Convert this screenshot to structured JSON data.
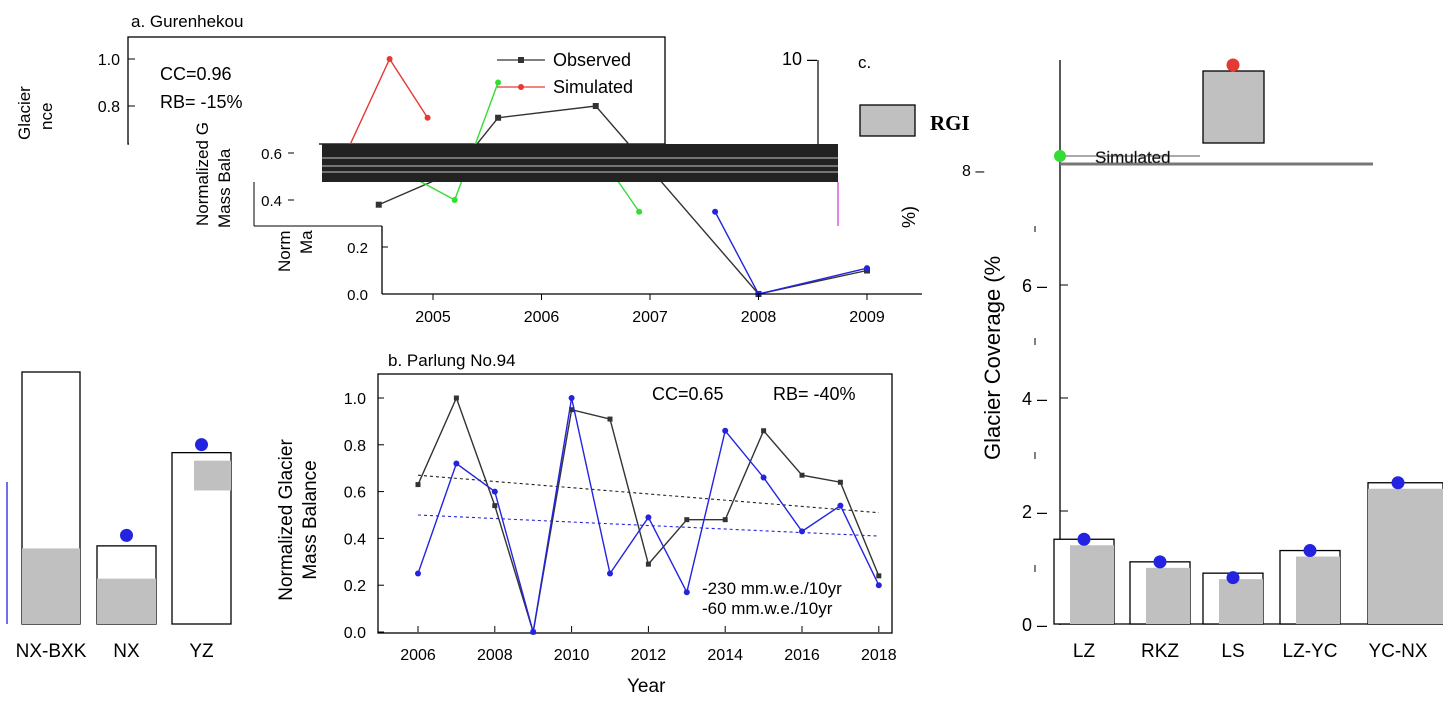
{
  "colors": {
    "observed": "#333333",
    "simulated_a": "#e53935",
    "simulated_b": "#2424e0",
    "bar_fill": "#c0c0c0",
    "green_marker": "#33dd33",
    "trend_obs": "#222222"
  },
  "chart_data": [
    {
      "id": "a",
      "type": "line",
      "title": "a. Gurenhekou",
      "ylabel_fragments": [
        "Glacier",
        "nce",
        "Normalized G",
        "Mass Bala",
        "Norm",
        "Ma"
      ],
      "ylim": [
        0,
        1.05
      ],
      "yticks": [
        "0.0",
        "0.2",
        "0.4",
        "0.6",
        "0.8",
        "1.0"
      ],
      "x": [
        2005,
        2006,
        2007,
        2008,
        2009
      ],
      "xticks": [
        "2005",
        "2006",
        "2007",
        "2008",
        "2009"
      ],
      "annotations": [
        "CC=0.96",
        "RB= -15%"
      ],
      "legend": {
        "position": "top-right",
        "entries": [
          "Observed",
          "Simulated"
        ]
      },
      "series": [
        {
          "name": "Observed",
          "points": [
            [
              2004.5,
              0.38
            ],
            [
              2005.2,
              0.52
            ],
            [
              2005.6,
              0.75
            ],
            [
              2006.5,
              0.8
            ],
            [
              2008.0,
              0.0
            ],
            [
              2009.0,
              0.1
            ]
          ]
        },
        {
          "name": "Simulated",
          "points": [
            [
              2004.15,
              0.55
            ],
            [
              2004.6,
              1.0
            ],
            [
              2004.95,
              0.75
            ]
          ]
        },
        {
          "name": "Simulated",
          "points": [
            [
              2004.6,
              0.55
            ],
            [
              2005.2,
              0.4
            ],
            [
              2005.6,
              0.9
            ]
          ]
        },
        {
          "name": "Simulated",
          "points": [
            [
              2006.6,
              0.55
            ],
            [
              2006.9,
              0.35
            ]
          ]
        },
        {
          "name": "Simulated",
          "points": [
            [
              2007.6,
              0.35
            ],
            [
              2008.0,
              0.0
            ],
            [
              2009.0,
              0.11
            ]
          ]
        }
      ]
    },
    {
      "id": "b",
      "type": "line",
      "title": "b. Parlung No.94",
      "xlabel": "Year",
      "ylabel": [
        "Normalized Glacier",
        "Mass Balance"
      ],
      "xlim": [
        2005,
        2019
      ],
      "ylim": [
        0,
        1.05
      ],
      "xticks": [
        "2006",
        "2008",
        "2010",
        "2012",
        "2014",
        "2016",
        "2018"
      ],
      "yticks": [
        "0.0",
        "0.2",
        "0.4",
        "0.6",
        "0.8",
        "1.0"
      ],
      "annotations": [
        "CC=0.65",
        "RB= -40%"
      ],
      "trend_labels": [
        "-230 mm.w.e./10yr",
        "-60 mm.w.e./10yr"
      ],
      "x": [
        2006,
        2007,
        2008,
        2009,
        2010,
        2011,
        2012,
        2013,
        2014,
        2015,
        2016,
        2017,
        2018
      ],
      "series": [
        {
          "name": "Observed",
          "values": [
            0.63,
            1.0,
            0.54,
            0.0,
            0.95,
            0.91,
            0.29,
            0.48,
            0.48,
            0.86,
            0.67,
            0.64,
            0.24
          ]
        },
        {
          "name": "Simulated",
          "values": [
            0.25,
            0.72,
            0.6,
            0.0,
            1.0,
            0.25,
            0.49,
            0.17,
            0.86,
            0.66,
            0.43,
            0.54,
            0.2
          ]
        }
      ],
      "trends": [
        {
          "name": "Observed",
          "x": [
            2006,
            2018
          ],
          "y": [
            0.67,
            0.51
          ]
        },
        {
          "name": "Simulated",
          "x": [
            2006,
            2018
          ],
          "y": [
            0.5,
            0.41
          ]
        }
      ]
    },
    {
      "id": "c",
      "type": "bar",
      "title": "c.",
      "ylabel": "Glacier Coverage (%",
      "ylim": [
        0,
        10
      ],
      "yticks": [
        "0",
        "2",
        "4",
        "6",
        "8",
        "10"
      ],
      "legend": {
        "position": "top-left",
        "entries": [
          "RGI",
          "Simulated"
        ]
      },
      "categories_left": [
        "NX-BXK",
        "NX",
        "YZ"
      ],
      "categories_right": [
        "LZ",
        "RKZ",
        "LS",
        "LZ-YC",
        "YC-NX"
      ],
      "series": [
        {
          "name": "RGI",
          "values_right": [
            1.5,
            1.1,
            0.9,
            1.3,
            2.5
          ]
        },
        {
          "name": "Simulated",
          "values_right": [
            1.5,
            1.1,
            0.82,
            1.3,
            2.5
          ]
        }
      ],
      "partial_bar": {
        "value": 9.5,
        "simulated": 9.7
      },
      "left_bars": [
        {
          "category": "NX-BXK",
          "fill_frac": 0.3,
          "frame_frac": 1.0,
          "simulated": null
        },
        {
          "category": "NX",
          "fill_frac": 0.18,
          "frame_frac": 0.31,
          "simulated": 0.32
        },
        {
          "category": "YZ",
          "fill_frac": 0.53,
          "frame_frac": 0.68,
          "simulated": 0.68
        }
      ]
    }
  ]
}
